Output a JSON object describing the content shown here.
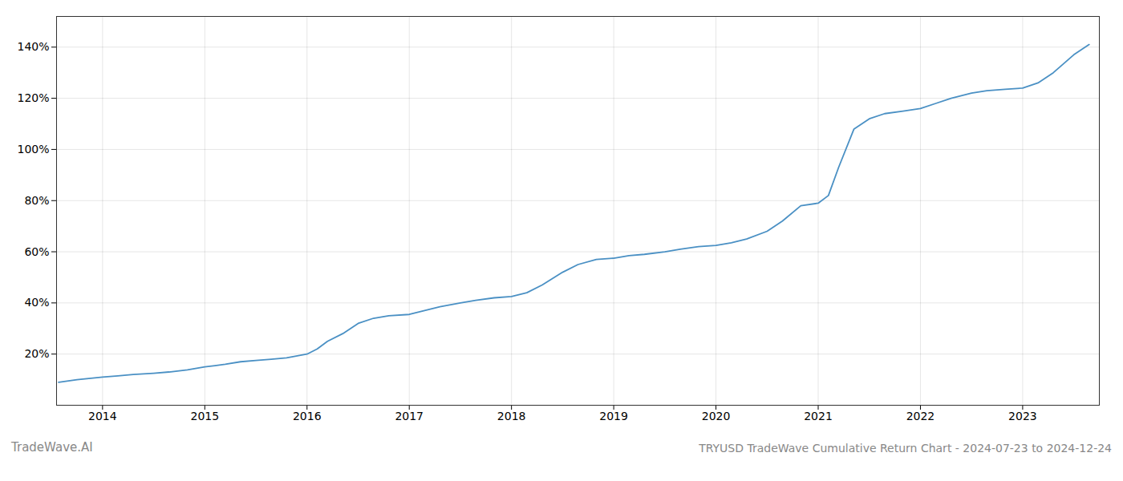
{
  "chart_data": {
    "type": "line",
    "title": "TRYUSD TradeWave Cumulative Return Chart - 2024-07-23 to 2024-12-24",
    "annotations": [
      "TradeWave.AI"
    ],
    "color": "#4a90c4",
    "grid": true,
    "x": [
      2013.57,
      2013.75,
      2014.0,
      2014.15,
      2014.3,
      2014.5,
      2014.65,
      2014.83,
      2015.0,
      2015.1,
      2015.2,
      2015.35,
      2015.5,
      2015.65,
      2015.8,
      2016.0,
      2016.1,
      2016.2,
      2016.35,
      2016.5,
      2016.65,
      2016.8,
      2017.0,
      2017.15,
      2017.3,
      2017.5,
      2017.65,
      2017.83,
      2018.0,
      2018.15,
      2018.3,
      2018.5,
      2018.65,
      2018.83,
      2019.0,
      2019.15,
      2019.3,
      2019.5,
      2019.65,
      2019.83,
      2020.0,
      2020.15,
      2020.3,
      2020.5,
      2020.65,
      2020.83,
      2021.0,
      2021.1,
      2021.2,
      2021.35,
      2021.5,
      2021.65,
      2021.83,
      2022.0,
      2022.15,
      2022.3,
      2022.5,
      2022.65,
      2022.83,
      2023.0,
      2023.15,
      2023.3,
      2023.5,
      2023.65
    ],
    "values": [
      9,
      10,
      11,
      11.5,
      12,
      12.5,
      13,
      13.8,
      15,
      15.5,
      16,
      17,
      17.5,
      18,
      18.5,
      20,
      22,
      25,
      28,
      32,
      34,
      35,
      35.5,
      37,
      38.5,
      40,
      41,
      42,
      42.5,
      44,
      47,
      52,
      55,
      57,
      57.5,
      58.5,
      59,
      60,
      61,
      62,
      62.5,
      63.5,
      65,
      68,
      72,
      78,
      79,
      82,
      93,
      108,
      112,
      114,
      115,
      116,
      118,
      120,
      122,
      123,
      123.5,
      124,
      126,
      130,
      137,
      141
    ],
    "xlim": [
      2013.55,
      2023.75
    ],
    "xticks": [
      2014,
      2015,
      2016,
      2017,
      2018,
      2019,
      2020,
      2021,
      2022,
      2023
    ],
    "ylim": [
      0,
      152
    ],
    "yticks": [
      {
        "value": 20,
        "label": "20%"
      },
      {
        "value": 40,
        "label": "40%"
      },
      {
        "value": 60,
        "label": "60%"
      },
      {
        "value": 80,
        "label": "80%"
      },
      {
        "value": 100,
        "label": "100%"
      },
      {
        "value": 120,
        "label": "120%"
      },
      {
        "value": 140,
        "label": "140%"
      }
    ]
  }
}
